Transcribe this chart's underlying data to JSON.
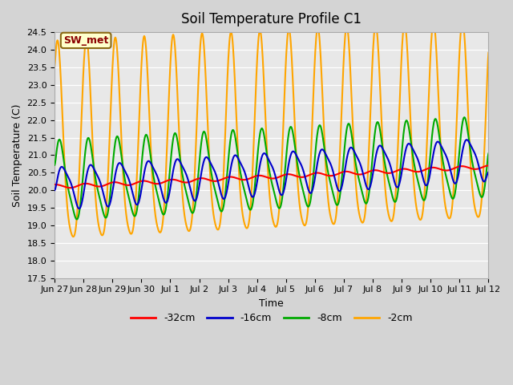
{
  "title": "Soil Temperature Profile C1",
  "xlabel": "Time",
  "ylabel": "Soil Temperature (C)",
  "ylim": [
    17.5,
    24.5
  ],
  "plot_bg_color": "#e8e8e8",
  "fig_bg_color": "#d4d4d4",
  "annotation_text": "SW_met",
  "annotation_color": "#8b0000",
  "annotation_bg": "#ffffcc",
  "annotation_edge": "#8b6914",
  "legend_entries": [
    "-32cm",
    "-16cm",
    "-8cm",
    "-2cm"
  ],
  "legend_colors": [
    "#ff0000",
    "#0000cc",
    "#00aa00",
    "#ffa500"
  ],
  "line_width": 1.5,
  "xtick_labels": [
    "Jun 27",
    "Jun 28",
    "Jun 29",
    "Jun 30",
    "Jul 1",
    "Jul 2",
    "Jul 3",
    "Jul 4",
    "Jul 5",
    "Jul 6",
    "Jul 7",
    "Jul 8",
    "Jul 9",
    "Jul 10",
    "Jul 11",
    "Jul 12"
  ],
  "xtick_positions": [
    0,
    1,
    2,
    3,
    4,
    5,
    6,
    7,
    8,
    9,
    10,
    11,
    12,
    13,
    14,
    15
  ],
  "num_points": 960,
  "xlim": [
    0,
    15
  ]
}
